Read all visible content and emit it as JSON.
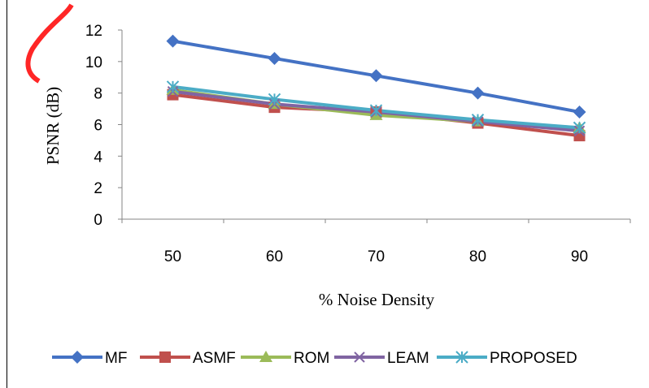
{
  "chart_data": {
    "type": "line",
    "title": "",
    "xlabel": "% Noise Density",
    "ylabel": "PSNR (dB)",
    "categories": [
      "50",
      "60",
      "70",
      "80",
      "90"
    ],
    "ylim": [
      0,
      12
    ],
    "yticks": [
      "0",
      "2",
      "4",
      "6",
      "8",
      "10",
      "12"
    ],
    "grid": false,
    "legend_position": "bottom",
    "series": [
      {
        "name": "MF",
        "color": "#4472C4",
        "marker": "diamond",
        "values": [
          11.3,
          10.2,
          9.1,
          8.0,
          6.8
        ]
      },
      {
        "name": "ASMF",
        "color": "#C0504D",
        "marker": "square",
        "values": [
          7.9,
          7.1,
          6.8,
          6.1,
          5.3
        ]
      },
      {
        "name": "ROM",
        "color": "#9BBB59",
        "marker": "triangle",
        "values": [
          8.2,
          7.3,
          6.6,
          6.2,
          5.8
        ]
      },
      {
        "name": "LEAM",
        "color": "#8064A2",
        "marker": "x",
        "values": [
          8.1,
          7.3,
          6.8,
          6.2,
          5.6
        ]
      },
      {
        "name": "PROPOSED",
        "color": "#4BACC6",
        "marker": "star",
        "values": [
          8.4,
          7.6,
          6.9,
          6.3,
          5.8
        ]
      }
    ]
  }
}
